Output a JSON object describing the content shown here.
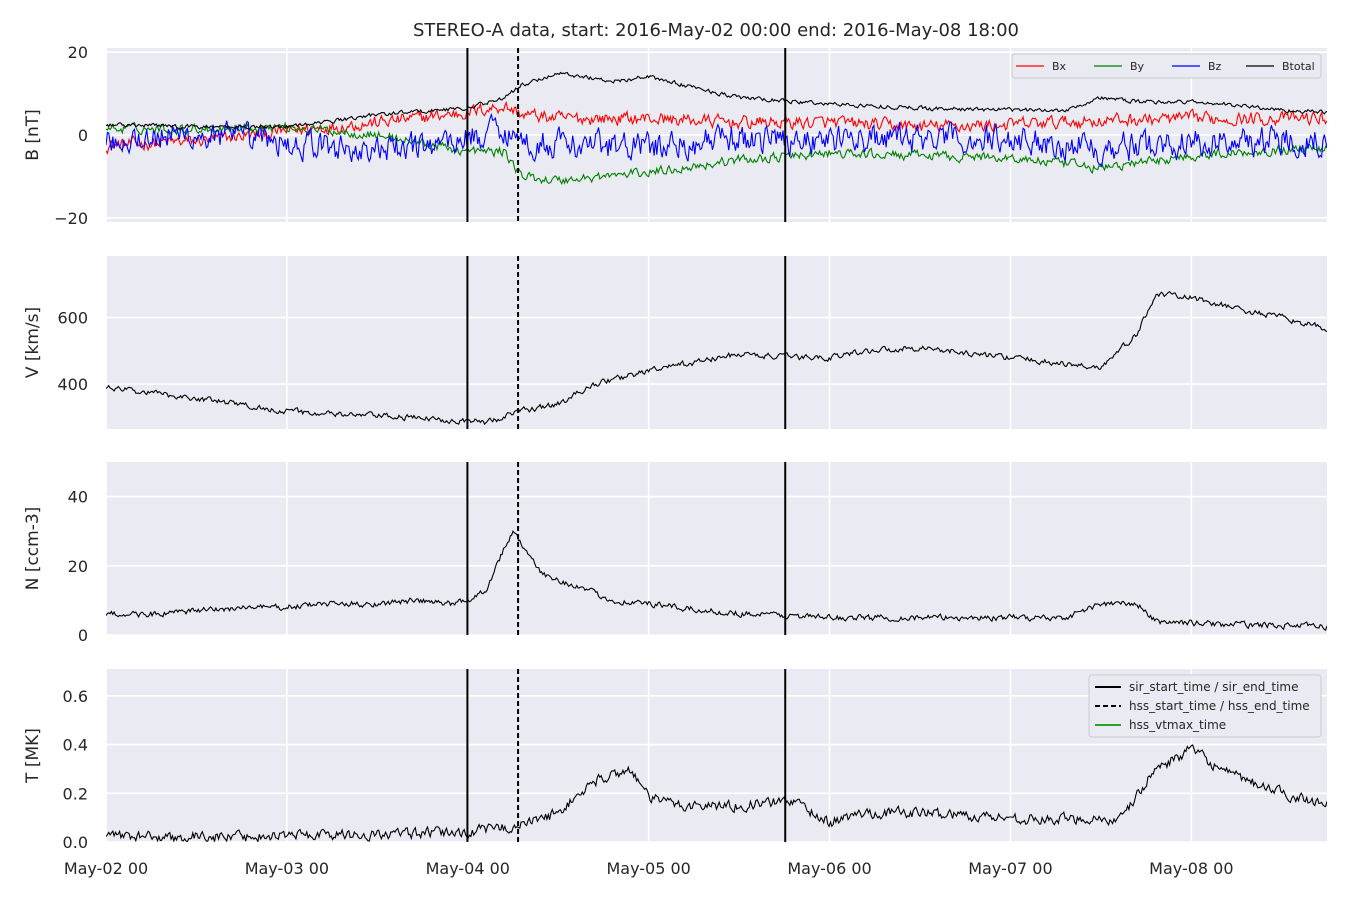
{
  "figure": {
    "title": "STEREO-A data, start: 2016-May-02 00:00  end: 2016-May-08 18:00",
    "x_ticks": [
      "May-02 00",
      "May-03 00",
      "May-04 00",
      "May-05 00",
      "May-06 00",
      "May-07 00",
      "May-08 00"
    ],
    "background_color": "#eaeaf2",
    "grid_color": "#ffffff"
  },
  "chart_data": [
    {
      "type": "line",
      "panel": "B",
      "ylabel": "B [nT]",
      "ylim": [
        -21,
        21
      ],
      "y_ticks": [
        20,
        0,
        -20
      ],
      "y_tick_labels": [
        "20",
        "0",
        "−20"
      ],
      "x_unit": "days since May-02 00:00",
      "xlim": [
        0,
        6.75
      ],
      "legend": {
        "position": "top-right",
        "columns": 4
      },
      "series": [
        {
          "name": "Bx",
          "color": "#ff0000",
          "x": [
            0,
            0.5,
            1.0,
            1.5,
            2.0,
            2.2,
            2.3,
            2.5,
            3.0,
            3.5,
            4.0,
            4.5,
            5.0,
            5.5,
            6.0,
            6.5,
            6.75
          ],
          "values": [
            -2.5,
            -1.5,
            1.0,
            3.0,
            5.5,
            7.0,
            5.0,
            4.0,
            4.0,
            3.0,
            3.0,
            2.0,
            2.5,
            3.5,
            4.0,
            4.0,
            4.0
          ],
          "noise": 2.5
        },
        {
          "name": "By",
          "color": "#008000",
          "x": [
            0,
            0.5,
            1.0,
            1.5,
            2.0,
            2.2,
            2.3,
            2.5,
            3.0,
            3.5,
            4.0,
            4.5,
            5.0,
            5.5,
            6.0,
            6.5,
            6.75
          ],
          "values": [
            1.5,
            1.5,
            2.0,
            0.0,
            -4.0,
            -4.0,
            -10.0,
            -11.0,
            -9.0,
            -6.0,
            -4.5,
            -5.0,
            -5.5,
            -8.0,
            -5.0,
            -3.5,
            -3.0
          ],
          "noise": 1.8
        },
        {
          "name": "Bz",
          "color": "#0000ff",
          "x": [
            0,
            0.5,
            1.0,
            1.5,
            2.0,
            2.2,
            2.3,
            2.5,
            3.0,
            3.5,
            4.0,
            4.5,
            5.0,
            5.5,
            6.0,
            6.5,
            6.75
          ],
          "values": [
            -1.0,
            0.0,
            -2.0,
            -4.0,
            -1.0,
            2.0,
            -2.0,
            -2.0,
            -3.0,
            -1.0,
            -1.0,
            -1.0,
            -1.0,
            -3.0,
            -2.0,
            -1.0,
            -1.0
          ],
          "noise": 5.5
        },
        {
          "name": "Btotal",
          "color": "#000000",
          "x": [
            0,
            0.5,
            1.0,
            1.2,
            1.5,
            2.0,
            2.2,
            2.3,
            2.5,
            2.8,
            3.0,
            3.5,
            4.0,
            4.5,
            5.0,
            5.3,
            5.5,
            5.7,
            6.0,
            6.3,
            6.5,
            6.75
          ],
          "values": [
            2.5,
            2.0,
            2.0,
            3.0,
            5.0,
            6.5,
            9.0,
            12.0,
            15.0,
            13.0,
            14.0,
            9.0,
            7.5,
            6.5,
            6.0,
            6.0,
            9.0,
            8.0,
            8.0,
            7.0,
            6.0,
            5.5
          ],
          "noise": 0.8
        }
      ]
    },
    {
      "type": "line",
      "panel": "V",
      "ylabel": "V [km/s]",
      "ylim": [
        265,
        785
      ],
      "y_ticks": [
        400,
        600
      ],
      "y_tick_labels": [
        "400",
        "600"
      ],
      "x_unit": "days since May-02 00:00",
      "xlim": [
        0,
        6.75
      ],
      "series": [
        {
          "color": "#000000",
          "x": [
            0,
            0.3,
            0.6,
            0.9,
            1.2,
            1.5,
            1.8,
            2.0,
            2.1,
            2.3,
            2.5,
            2.7,
            3.0,
            3.2,
            3.5,
            3.8,
            4.0,
            4.2,
            4.5,
            4.8,
            5.0,
            5.3,
            5.5,
            5.6,
            5.7,
            5.8,
            6.0,
            6.3,
            6.5,
            6.75
          ],
          "values": [
            390,
            370,
            350,
            325,
            310,
            305,
            295,
            290,
            285,
            320,
            340,
            400,
            440,
            460,
            490,
            480,
            480,
            500,
            510,
            490,
            480,
            460,
            450,
            500,
            550,
            670,
            660,
            620,
            600,
            565
          ],
          "noise": 14
        }
      ]
    },
    {
      "type": "line",
      "panel": "N",
      "ylabel": "N [ccm-3]",
      "ylim": [
        0,
        50
      ],
      "y_ticks": [
        0,
        20,
        40
      ],
      "y_tick_labels": [
        "0",
        "20",
        "40"
      ],
      "x_unit": "days since May-02 00:00",
      "xlim": [
        0,
        6.75
      ],
      "series": [
        {
          "color": "#000000",
          "x": [
            0,
            0.3,
            0.5,
            0.8,
            1.0,
            1.2,
            1.5,
            1.7,
            1.9,
            2.0,
            2.1,
            2.2,
            2.25,
            2.3,
            2.4,
            2.6,
            2.8,
            3.0,
            3.3,
            3.6,
            4.0,
            4.5,
            5.0,
            5.3,
            5.5,
            5.7,
            5.8,
            6.0,
            6.2,
            6.3,
            6.75
          ],
          "values": [
            6,
            6,
            7,
            8,
            8,
            9,
            9,
            10,
            9,
            10,
            13,
            25,
            30,
            26,
            18,
            14,
            10,
            9,
            7,
            6,
            5,
            5,
            5,
            5,
            9,
            9,
            4,
            3.5,
            3,
            3,
            2.5
          ],
          "noise": 1.4
        }
      ]
    },
    {
      "type": "line",
      "panel": "T",
      "ylabel": "T [MK]",
      "ylim": [
        0,
        0.71
      ],
      "y_ticks": [
        0.0,
        0.2,
        0.4,
        0.6
      ],
      "y_tick_labels": [
        "0.0",
        "0.2",
        "0.4",
        "0.6"
      ],
      "x_unit": "days since May-02 00:00",
      "xlim": [
        0,
        6.75
      ],
      "legend": {
        "position": "top-right",
        "entries": [
          {
            "label": "sir_start_time / sir_end_time",
            "color": "#000000",
            "style": "solid"
          },
          {
            "label": "hss_start_time / hss_end_time",
            "color": "#000000",
            "style": "dashed"
          },
          {
            "label": "hss_vtmax_time",
            "color": "#2ca02c",
            "style": "solid"
          }
        ]
      },
      "series": [
        {
          "color": "#000000",
          "x": [
            0,
            0.3,
            0.5,
            1.0,
            1.5,
            2.0,
            2.1,
            2.3,
            2.5,
            2.7,
            2.9,
            3.0,
            3.2,
            3.5,
            3.8,
            4.0,
            4.2,
            4.5,
            5.0,
            5.2,
            5.5,
            5.6,
            5.8,
            6.0,
            6.2,
            6.5,
            6.75
          ],
          "values": [
            0.03,
            0.02,
            0.02,
            0.03,
            0.03,
            0.04,
            0.05,
            0.07,
            0.12,
            0.25,
            0.3,
            0.18,
            0.15,
            0.15,
            0.17,
            0.08,
            0.12,
            0.12,
            0.1,
            0.09,
            0.1,
            0.08,
            0.3,
            0.38,
            0.28,
            0.2,
            0.16
          ],
          "noise": 0.035
        }
      ],
      "vertical_markers": {
        "x_unit": "days since May-02 00:00",
        "sir_start_time": 1.998,
        "hss_start_time": 2.278,
        "sir_end_time": 3.755
      }
    }
  ]
}
